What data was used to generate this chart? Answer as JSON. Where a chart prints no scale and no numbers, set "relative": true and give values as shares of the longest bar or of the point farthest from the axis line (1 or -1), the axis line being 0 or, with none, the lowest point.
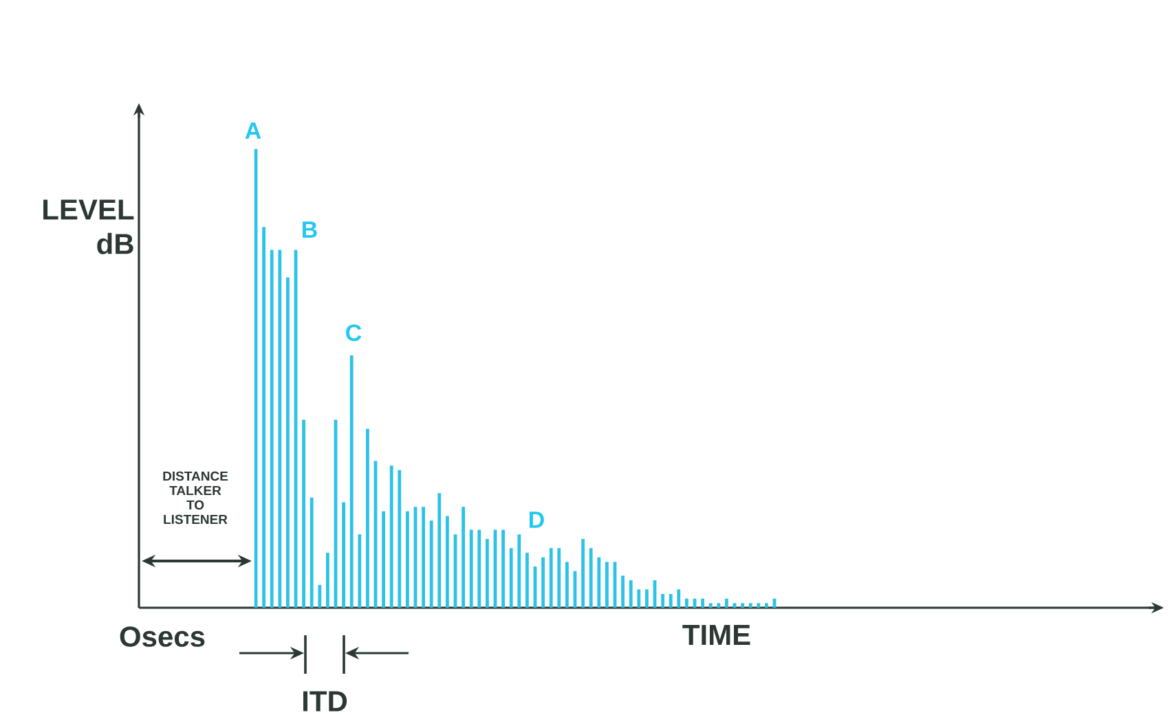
{
  "chart_data": {
    "type": "bar",
    "relative": true,
    "xlabel": "TIME",
    "ylabel": "LEVEL dB",
    "color": "#2cc3e6",
    "categories": [
      null,
      null,
      null,
      null,
      null,
      null,
      null,
      null,
      null,
      null,
      null,
      null,
      null,
      null,
      null,
      null,
      null,
      null,
      null,
      null,
      null,
      null,
      null,
      null,
      null,
      null,
      null,
      null,
      null,
      null,
      null,
      null,
      null,
      null,
      null,
      null,
      null,
      null,
      null,
      null,
      null,
      null,
      null,
      null,
      null,
      null,
      null,
      null,
      null,
      null,
      null,
      null,
      null,
      null,
      null,
      null,
      null,
      null,
      null,
      null,
      null,
      null,
      null,
      null,
      null,
      null
    ],
    "values": [
      1.0,
      0.83,
      0.78,
      0.78,
      0.72,
      0.78,
      0.41,
      0.24,
      0.05,
      0.12,
      0.41,
      0.23,
      0.55,
      0.16,
      0.39,
      0.32,
      0.21,
      0.31,
      0.3,
      0.21,
      0.22,
      0.22,
      0.19,
      0.25,
      0.2,
      0.16,
      0.22,
      0.17,
      0.17,
      0.15,
      0.17,
      0.17,
      0.13,
      0.16,
      0.12,
      0.09,
      0.11,
      0.13,
      0.13,
      0.1,
      0.08,
      0.15,
      0.13,
      0.11,
      0.1,
      0.1,
      0.07,
      0.06,
      0.04,
      0.04,
      0.06,
      0.03,
      0.03,
      0.04,
      0.02,
      0.02,
      0.02,
      0.01,
      0.01,
      0.02,
      0.01,
      0.01,
      0.01,
      0.01,
      0.01,
      0.02
    ],
    "annotations": [
      "A",
      "B",
      "C",
      "D",
      "DISTANCE TALKER TO LISTENER",
      "Osecs",
      "ITD"
    ]
  }
}
